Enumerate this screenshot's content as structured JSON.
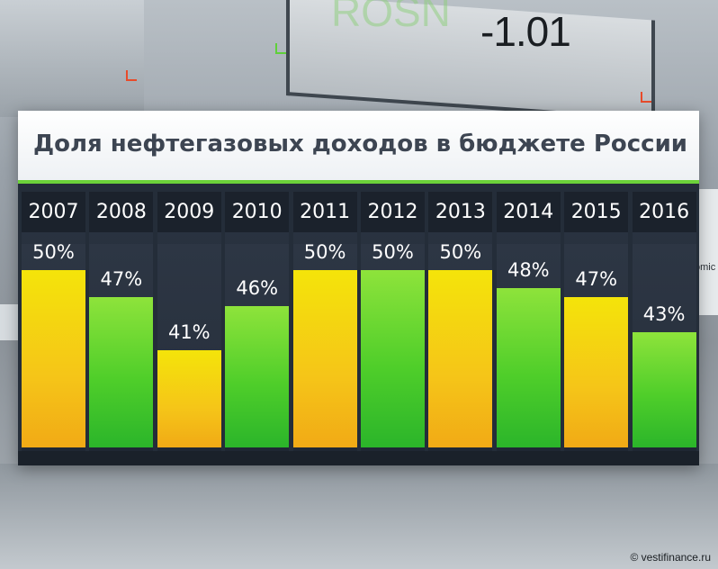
{
  "title": "Доля нефтегазовых доходов  в бюджете России",
  "background_ticker": "-1.01",
  "background_ghost_text": "ROSN",
  "background_side_text": "omic",
  "credit": "© vestifinance.ru",
  "colors": {
    "board": "#242d39",
    "accent_green": "#6cd23a",
    "yellow_bar": "#f5c518",
    "green_bar": "#4fce2a"
  },
  "chart_data": {
    "type": "bar",
    "title": "Доля нефтегазовых доходов  в бюджете России",
    "categories": [
      "2007",
      "2008",
      "2009",
      "2010",
      "2011",
      "2012",
      "2013",
      "2014",
      "2015",
      "2016"
    ],
    "values": [
      50,
      47,
      41,
      46,
      50,
      50,
      50,
      48,
      47,
      43
    ],
    "value_labels": [
      "50%",
      "47%",
      "41%",
      "46%",
      "50%",
      "50%",
      "50%",
      "48%",
      "47%",
      "43%"
    ],
    "bar_colors": [
      "yellow",
      "green",
      "yellow",
      "green",
      "yellow",
      "green",
      "yellow",
      "green",
      "yellow",
      "green"
    ],
    "unit": "%",
    "ylim": [
      30,
      53
    ],
    "grid": false,
    "xlabel": "",
    "ylabel": ""
  }
}
